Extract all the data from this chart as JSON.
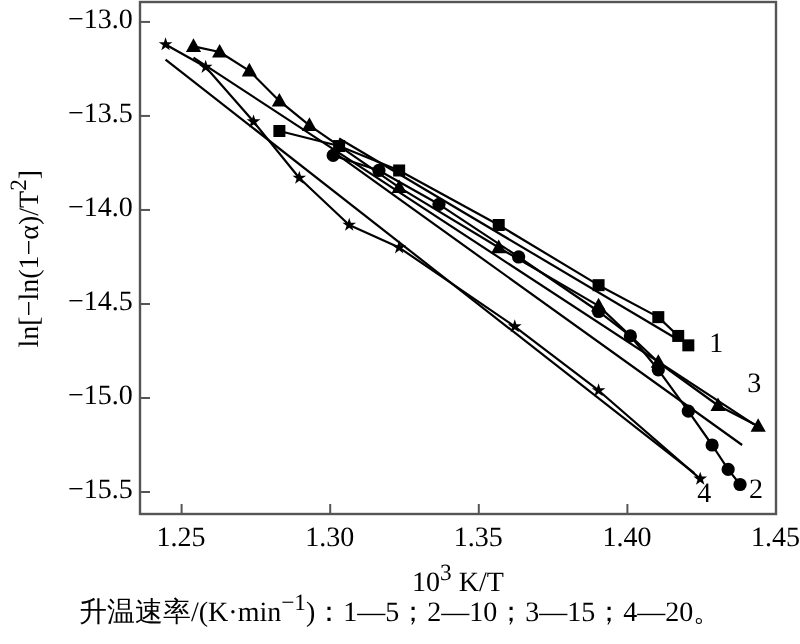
{
  "chart_data": {
    "type": "line",
    "xlabel": "10$^{3}$ K/T",
    "ylabel": "ln[−ln(1−α)/T$^{2}$]",
    "xlim": [
      1.236,
      1.45
    ],
    "ylim": [
      -15.617,
      -12.894
    ],
    "xticks": [
      {
        "value": 1.25,
        "label": "1.25"
      },
      {
        "value": 1.3,
        "label": "1.30"
      },
      {
        "value": 1.35,
        "label": "1.35"
      },
      {
        "value": 1.4,
        "label": "1.40"
      },
      {
        "value": 1.45,
        "label": "1.45"
      }
    ],
    "yticks": [
      {
        "value": -13,
        "label": "−13.0"
      },
      {
        "value": -13.5,
        "label": "−13.5"
      },
      {
        "value": -14,
        "label": "−14.0"
      },
      {
        "value": -14.5,
        "label": "−14.5"
      },
      {
        "value": -15,
        "label": "−15.0"
      },
      {
        "value": -15.5,
        "label": "−15.5"
      }
    ],
    "grid": false,
    "series": [
      {
        "name": "1",
        "color": "#000000",
        "marker": "square",
        "x": [
          1.2829,
          1.303,
          1.3232,
          1.3567,
          1.3903,
          1.4104,
          1.4171,
          1.4205
        ],
        "values": [
          -13.58,
          -13.66,
          -13.79,
          -14.08,
          -14.4,
          -14.57,
          -14.67,
          -14.72
        ]
      },
      {
        "name": "2",
        "color": "#000000",
        "marker": "circle",
        "x": [
          1.301,
          1.3164,
          1.3366,
          1.3634,
          1.3903,
          1.401,
          1.4104,
          1.4205,
          1.4285,
          1.4339,
          1.4379
        ],
        "values": [
          -13.71,
          -13.79,
          -13.97,
          -14.25,
          -14.54,
          -14.67,
          -14.85,
          -15.07,
          -15.25,
          -15.38,
          -15.46
        ]
      },
      {
        "name": "3",
        "color": "#000000",
        "marker": "triangle",
        "x": [
          1.254,
          1.2628,
          1.2728,
          1.2829,
          1.293,
          1.3232,
          1.3567,
          1.3903,
          1.4104,
          1.4305,
          1.444
        ],
        "values": [
          -13.13,
          -13.16,
          -13.26,
          -13.42,
          -13.55,
          -13.88,
          -14.2,
          -14.51,
          -14.81,
          -15.04,
          -15.15
        ]
      },
      {
        "name": "4",
        "color": "#000000",
        "marker": "star",
        "x": [
          1.2446,
          1.2581,
          1.2742,
          1.2896,
          1.3064,
          1.3232,
          1.3621,
          1.3903,
          1.4245
        ],
        "values": [
          -13.12,
          -13.24,
          -13.53,
          -13.83,
          -14.08,
          -14.2,
          -14.62,
          -14.96,
          -15.43
        ]
      },
      {
        "color": "#000000",
        "marker": "none",
        "x": [
          1.303,
          1.4171
        ],
        "values": [
          -13.62,
          -14.69
        ]
      },
      {
        "color": "#000000",
        "marker": "none",
        "x": [
          1.301,
          1.4386
        ],
        "values": [
          -13.69,
          -15.25
        ]
      },
      {
        "color": "#000000",
        "marker": "none",
        "x": [
          1.254,
          1.4426
        ],
        "values": [
          -13.19,
          -15.14
        ]
      },
      {
        "color": "#000000",
        "marker": "none",
        "x": [
          1.2446,
          1.4225
        ],
        "values": [
          -13.2,
          -15.4
        ]
      }
    ],
    "annotations": [
      "升温速率/(K·min$^{−1}$)：1—5；2—10；3—15；4—20。"
    ]
  }
}
